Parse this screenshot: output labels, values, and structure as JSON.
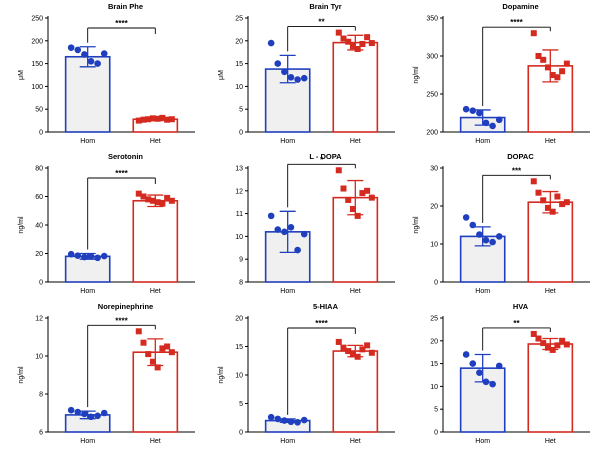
{
  "colors": {
    "hom": "#1f3fbf",
    "het": "#d42a1f",
    "hom_fill": "#f0f0f0",
    "het_fill": "#ffffff"
  },
  "chart_data": [
    {
      "type": "bar",
      "title": "Brain Phe",
      "ylabel": "μM",
      "categories": [
        "Hom",
        "Het"
      ],
      "ylim": [
        0,
        250
      ],
      "yticks": [
        "0",
        "50",
        "100",
        "150",
        "200",
        "250"
      ],
      "yticks_val": [
        0,
        50,
        100,
        150,
        200,
        250
      ],
      "values": [
        165,
        28
      ],
      "sd": [
        22,
        3
      ],
      "points": [
        [
          185,
          180,
          170,
          155,
          150,
          172
        ],
        [
          25,
          27,
          28,
          30,
          29,
          31,
          27,
          28
        ]
      ],
      "significance": "****"
    },
    {
      "type": "bar",
      "title": "Brain Tyr",
      "ylabel": "μM",
      "categories": [
        "Hom",
        "Het"
      ],
      "ylim": [
        0,
        25
      ],
      "yticks": [
        "0",
        "5",
        "10",
        "15",
        "20",
        "25"
      ],
      "yticks_val": [
        0,
        5,
        10,
        15,
        20,
        25
      ],
      "values": [
        13.8,
        19.6
      ],
      "sd": [
        3.0,
        1.6
      ],
      "points": [
        [
          19.5,
          15,
          13.2,
          12,
          11.5,
          11.8
        ],
        [
          21.8,
          20.5,
          19.8,
          18.8,
          18.2,
          19.3,
          20.8,
          19.5
        ]
      ],
      "significance": "**"
    },
    {
      "type": "bar",
      "title": "Dopamine",
      "ylabel": "ng/ml",
      "categories": [
        "Hom",
        "Het"
      ],
      "ylim": [
        200,
        350
      ],
      "yticks": [
        "200",
        "250",
        "300",
        "350"
      ],
      "yticks_val": [
        200,
        250,
        300,
        350
      ],
      "values": [
        219,
        287
      ],
      "sd": [
        10,
        21
      ],
      "points": [
        [
          230,
          228,
          225,
          212,
          208,
          216
        ],
        [
          330,
          300,
          295,
          285,
          275,
          272,
          280,
          290
        ]
      ],
      "significance": "****"
    },
    {
      "type": "bar",
      "title": "Serotonin",
      "ylabel": "ng/ml",
      "categories": [
        "Hom",
        "Het"
      ],
      "ylim": [
        0,
        80
      ],
      "yticks": [
        "0",
        "20",
        "40",
        "60",
        "80"
      ],
      "yticks_val": [
        0,
        20,
        40,
        60,
        80
      ],
      "values": [
        18,
        57
      ],
      "sd": [
        2,
        4
      ],
      "points": [
        [
          19.5,
          18.5,
          17.5,
          18,
          17,
          18.2
        ],
        [
          62,
          60,
          58,
          57,
          56,
          55,
          59,
          57
        ]
      ],
      "significance": "****"
    },
    {
      "type": "bar",
      "title": "L - DOPA",
      "ylabel": "",
      "categories": [
        "Hom",
        "Het"
      ],
      "ylim": [
        8,
        13
      ],
      "yticks": [
        "8",
        "9",
        "10",
        "11",
        "12",
        "13"
      ],
      "yticks_val": [
        8,
        9,
        10,
        11,
        12,
        13
      ],
      "values": [
        10.2,
        11.7
      ],
      "sd": [
        0.9,
        0.75
      ],
      "points": [
        [
          10.9,
          10.3,
          10.2,
          10.4,
          9.4,
          10.1
        ],
        [
          12.9,
          12.1,
          11.6,
          11.2,
          10.9,
          11.9,
          12.0,
          11.7
        ]
      ],
      "significance": "*"
    },
    {
      "type": "bar",
      "title": "DOPAC",
      "ylabel": "ng/ml",
      "categories": [
        "Hom",
        "Het"
      ],
      "ylim": [
        0,
        30
      ],
      "yticks": [
        "0",
        "10",
        "20",
        "30"
      ],
      "yticks_val": [
        0,
        10,
        20,
        30
      ],
      "values": [
        12,
        21
      ],
      "sd": [
        2.5,
        2.8
      ],
      "points": [
        [
          17,
          15,
          12.5,
          11,
          10.5,
          12
        ],
        [
          26.5,
          23.5,
          21.5,
          19.5,
          18.5,
          22.5,
          20.5,
          21
        ]
      ],
      "significance": "***"
    },
    {
      "type": "bar",
      "title": "Norepinephrine",
      "ylabel": "ng/ml",
      "categories": [
        "Hom",
        "Het"
      ],
      "ylim": [
        6,
        12
      ],
      "yticks": [
        "6",
        "8",
        "10",
        "12"
      ],
      "yticks_val": [
        6,
        8,
        10,
        12
      ],
      "values": [
        6.9,
        10.2
      ],
      "sd": [
        0.2,
        0.7
      ],
      "points": [
        [
          7.15,
          7.05,
          6.95,
          6.8,
          6.85,
          7.0
        ],
        [
          11.3,
          10.7,
          10.1,
          9.7,
          9.4,
          10.4,
          10.5,
          10.2
        ]
      ],
      "significance": "****"
    },
    {
      "type": "bar",
      "title": "5-HIAA",
      "ylabel": "ng/ml",
      "categories": [
        "Hom",
        "Het"
      ],
      "ylim": [
        0,
        20
      ],
      "yticks": [
        "0",
        "5",
        "10",
        "15",
        "20"
      ],
      "yticks_val": [
        0,
        5,
        10,
        15,
        20
      ],
      "values": [
        2.0,
        14.2
      ],
      "sd": [
        0.3,
        1.0
      ],
      "points": [
        [
          2.6,
          2.3,
          2.0,
          1.8,
          1.7,
          2.1
        ],
        [
          15.8,
          14.8,
          14.2,
          13.6,
          13.2,
          14.5,
          15.2,
          13.9
        ]
      ],
      "significance": "****"
    },
    {
      "type": "bar",
      "title": "HVA",
      "ylabel": "",
      "categories": [
        "Hom",
        "Het"
      ],
      "ylim": [
        0,
        25
      ],
      "yticks": [
        "0",
        "5",
        "10",
        "15",
        "20",
        "25"
      ],
      "yticks_val": [
        0,
        5,
        10,
        15,
        20,
        25
      ],
      "values": [
        14,
        19.3
      ],
      "sd": [
        3,
        1.2
      ],
      "points": [
        [
          17,
          15,
          13,
          11,
          10.5,
          14.5
        ],
        [
          21.5,
          20.5,
          19.5,
          18.5,
          18,
          19,
          20,
          19.2
        ]
      ],
      "significance": "**"
    }
  ]
}
